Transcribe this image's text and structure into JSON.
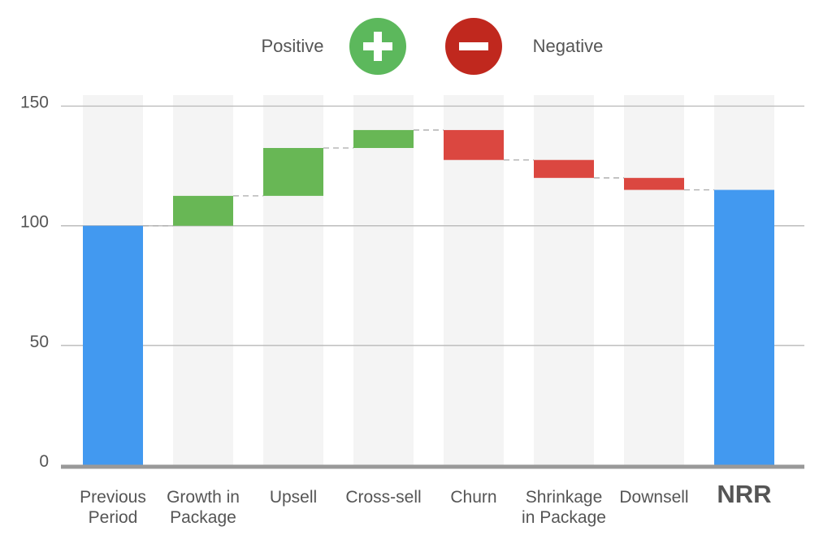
{
  "legend": {
    "positive_label": "Positive",
    "negative_label": "Negative",
    "positive_icon": "plus-circle-icon",
    "negative_icon": "minus-circle-icon"
  },
  "colors": {
    "total": "#4299f0",
    "positive": "#68b755",
    "negative": "#db4740",
    "column_bg": "#f4f4f4",
    "grid": "#b8b8b8",
    "baseline": "#999999",
    "legend_positive": "#5cb85c",
    "legend_negative": "#c0281e"
  },
  "chart_data": {
    "type": "bar",
    "subtype": "waterfall",
    "title": "",
    "xlabel": "",
    "ylabel": "",
    "ylim": [
      0,
      150
    ],
    "yticks": [
      0,
      50,
      100,
      150
    ],
    "grid": true,
    "legend_position": "top-center",
    "categories": [
      "Previous Period",
      "Growth in Package",
      "Upsell",
      "Cross-sell",
      "Churn",
      "Shrinkage in Package",
      "Downsell",
      "NRR"
    ],
    "category_lines": [
      [
        "Previous",
        "Period"
      ],
      [
        "Growth in",
        "Package"
      ],
      [
        "Upsell"
      ],
      [
        "Cross-sell"
      ],
      [
        "Churn"
      ],
      [
        "Shrinkage",
        "in Package"
      ],
      [
        "Downsell"
      ],
      [
        "NRR"
      ]
    ],
    "kinds": [
      "total",
      "positive",
      "positive",
      "positive",
      "negative",
      "negative",
      "negative",
      "total"
    ],
    "values": [
      100,
      12.5,
      20,
      7.5,
      -12.5,
      -7.5,
      -5,
      115
    ]
  }
}
